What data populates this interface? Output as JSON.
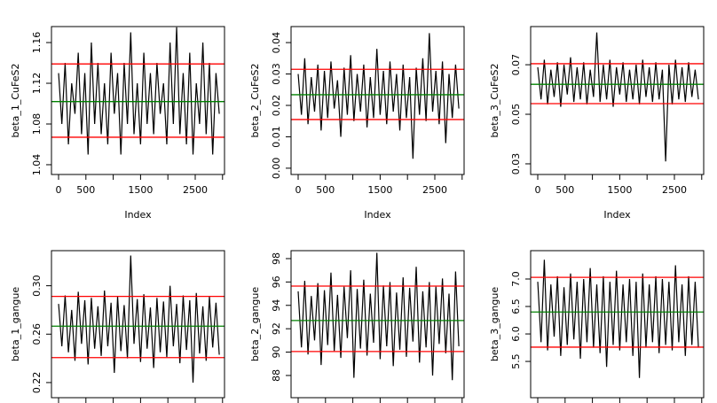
{
  "chart_data": [
    {
      "type": "line",
      "ylabel": "beta_1_CuFeS2",
      "xlabel": "Index",
      "color": "#000000",
      "x": [
        0,
        60,
        120,
        180,
        240,
        300,
        360,
        420,
        480,
        540,
        600,
        660,
        720,
        780,
        840,
        900,
        960,
        1020,
        1080,
        1140,
        1200,
        1260,
        1320,
        1380,
        1440,
        1500,
        1560,
        1620,
        1680,
        1740,
        1800,
        1860,
        1920,
        1980,
        2040,
        2100,
        2160,
        2220,
        2280,
        2340,
        2400,
        2460,
        2520,
        2580,
        2640,
        2700,
        2760,
        2820,
        2880,
        2940
      ],
      "values": [
        1.13,
        1.08,
        1.14,
        1.06,
        1.12,
        1.09,
        1.15,
        1.07,
        1.13,
        1.05,
        1.16,
        1.08,
        1.14,
        1.07,
        1.12,
        1.06,
        1.15,
        1.09,
        1.13,
        1.05,
        1.14,
        1.08,
        1.17,
        1.07,
        1.12,
        1.06,
        1.15,
        1.08,
        1.13,
        1.07,
        1.14,
        1.09,
        1.12,
        1.06,
        1.16,
        1.08,
        1.175,
        1.07,
        1.13,
        1.06,
        1.15,
        1.05,
        1.12,
        1.08,
        1.16,
        1.07,
        1.14,
        1.05,
        1.13,
        1.09
      ],
      "xlim": [
        -130,
        3036
      ],
      "ylim": [
        1.0304,
        1.1757
      ],
      "xticks": [
        0,
        500,
        1500,
        2500
      ],
      "xtick_marks": [
        1000,
        2000,
        3000
      ],
      "yticks": [
        1.04,
        1.08,
        1.12,
        1.16
      ],
      "hlines": [
        {
          "value": 1.139,
          "color": "#ff0000"
        },
        {
          "value": 1.067,
          "color": "#ff0000"
        },
        {
          "value": 1.102,
          "color": "#008000"
        }
      ]
    },
    {
      "type": "line",
      "ylabel": "beta_2_CuFeS2",
      "xlabel": "Index",
      "color": "#000000",
      "x": [
        0,
        60,
        120,
        180,
        240,
        300,
        360,
        420,
        480,
        540,
        600,
        660,
        720,
        780,
        840,
        900,
        960,
        1020,
        1080,
        1140,
        1200,
        1260,
        1320,
        1380,
        1440,
        1500,
        1560,
        1620,
        1680,
        1740,
        1800,
        1860,
        1920,
        1980,
        2040,
        2100,
        2160,
        2220,
        2280,
        2340,
        2400,
        2460,
        2520,
        2580,
        2640,
        2700,
        2760,
        2820,
        2880,
        2940
      ],
      "values": [
        0.03,
        0.017,
        0.035,
        0.014,
        0.029,
        0.018,
        0.033,
        0.012,
        0.031,
        0.016,
        0.034,
        0.019,
        0.028,
        0.01,
        0.032,
        0.017,
        0.036,
        0.015,
        0.03,
        0.018,
        0.033,
        0.013,
        0.029,
        0.016,
        0.038,
        0.017,
        0.031,
        0.014,
        0.034,
        0.018,
        0.03,
        0.012,
        0.033,
        0.016,
        0.029,
        0.003,
        0.032,
        0.017,
        0.035,
        0.015,
        0.043,
        0.018,
        0.031,
        0.014,
        0.034,
        0.008,
        0.03,
        0.016,
        0.033,
        0.019
      ],
      "xlim": [
        -130,
        3036
      ],
      "ylim": [
        -0.002,
        0.0451
      ],
      "xticks": [
        0,
        500,
        1500,
        2500
      ],
      "xtick_marks": [
        1000,
        2000,
        3000
      ],
      "yticks": [
        {
          "value": 0,
          "label": "0.00"
        },
        0.01,
        0.02,
        0.03,
        0.04
      ],
      "hlines": [
        {
          "value": 0.0315,
          "color": "#ff0000"
        },
        {
          "value": 0.0155,
          "color": "#ff0000"
        },
        {
          "value": 0.0234,
          "color": "#008000"
        }
      ]
    },
    {
      "type": "line",
      "ylabel": "beta_3_CuFeS2",
      "xlabel": "Index",
      "color": "#000000",
      "x": [
        0,
        60,
        120,
        180,
        240,
        300,
        360,
        420,
        480,
        540,
        600,
        660,
        720,
        780,
        840,
        900,
        960,
        1020,
        1080,
        1140,
        1200,
        1260,
        1320,
        1380,
        1440,
        1500,
        1560,
        1620,
        1680,
        1740,
        1800,
        1860,
        1920,
        1980,
        2040,
        2100,
        2160,
        2220,
        2280,
        2340,
        2400,
        2460,
        2520,
        2580,
        2640,
        2700,
        2760,
        2820,
        2880,
        2940
      ],
      "values": [
        0.069,
        0.056,
        0.072,
        0.054,
        0.068,
        0.057,
        0.071,
        0.053,
        0.07,
        0.058,
        0.073,
        0.055,
        0.069,
        0.056,
        0.071,
        0.054,
        0.068,
        0.057,
        0.083,
        0.055,
        0.07,
        0.056,
        0.072,
        0.053,
        0.069,
        0.058,
        0.071,
        0.055,
        0.068,
        0.056,
        0.07,
        0.054,
        0.072,
        0.057,
        0.069,
        0.055,
        0.071,
        0.056,
        0.068,
        0.031,
        0.07,
        0.054,
        0.072,
        0.056,
        0.069,
        0.055,
        0.071,
        0.057,
        0.068,
        0.056
      ],
      "xlim": [
        -130,
        3036
      ],
      "ylim": [
        0.0257,
        0.0854
      ],
      "xticks": [
        0,
        500,
        1500,
        2500
      ],
      "xtick_marks": [
        1000,
        2000,
        3000
      ],
      "yticks": [
        0.03,
        0.05,
        0.07
      ],
      "hlines": [
        {
          "value": 0.0704,
          "color": "#ff0000"
        },
        {
          "value": 0.0543,
          "color": "#ff0000"
        },
        {
          "value": 0.0621,
          "color": "#008000"
        }
      ]
    },
    {
      "type": "line",
      "ylabel": "beta_1_gangue",
      "color": "#000000",
      "x": [
        0,
        60,
        120,
        180,
        240,
        300,
        360,
        420,
        480,
        540,
        600,
        660,
        720,
        780,
        840,
        900,
        960,
        1020,
        1080,
        1140,
        1200,
        1260,
        1320,
        1380,
        1440,
        1500,
        1560,
        1620,
        1680,
        1740,
        1800,
        1860,
        1920,
        1980,
        2040,
        2100,
        2160,
        2220,
        2280,
        2340,
        2400,
        2460,
        2520,
        2580,
        2640,
        2700,
        2760,
        2820,
        2880,
        2940
      ],
      "values": [
        0.285,
        0.25,
        0.292,
        0.245,
        0.28,
        0.238,
        0.295,
        0.252,
        0.288,
        0.235,
        0.29,
        0.248,
        0.283,
        0.242,
        0.296,
        0.25,
        0.286,
        0.228,
        0.291,
        0.246,
        0.284,
        0.24,
        0.325,
        0.252,
        0.289,
        0.237,
        0.293,
        0.248,
        0.282,
        0.232,
        0.29,
        0.245,
        0.287,
        0.241,
        0.3,
        0.25,
        0.285,
        0.236,
        0.292,
        0.247,
        0.288,
        0.22,
        0.294,
        0.244,
        0.283,
        0.238,
        0.291,
        0.249,
        0.286,
        0.243
      ],
      "xlim": [
        -130,
        3036
      ],
      "ylim": [
        0.2075,
        0.329
      ],
      "xtick_marks": [
        0,
        500,
        1000,
        1500,
        2000,
        2500,
        3000
      ],
      "yticks": [
        0.22,
        0.26,
        {
          "value": 0.3,
          "label": "0.30"
        }
      ],
      "hlines": [
        {
          "value": 0.2912,
          "color": "#ff0000"
        },
        {
          "value": 0.2406,
          "color": "#ff0000"
        },
        {
          "value": 0.2666,
          "color": "#008000"
        }
      ]
    },
    {
      "type": "line",
      "ylabel": "beta_2_gangue",
      "color": "#000000",
      "x": [
        0,
        60,
        120,
        180,
        240,
        300,
        360,
        420,
        480,
        540,
        600,
        660,
        720,
        780,
        840,
        900,
        960,
        1020,
        1080,
        1140,
        1200,
        1260,
        1320,
        1380,
        1440,
        1500,
        1560,
        1620,
        1680,
        1740,
        1800,
        1860,
        1920,
        1980,
        2040,
        2100,
        2160,
        2220,
        2280,
        2340,
        2400,
        2460,
        2520,
        2580,
        2640,
        2700,
        2760,
        2820,
        2880,
        2940
      ],
      "values": [
        95.2,
        90.4,
        96.1,
        89.8,
        94.8,
        91.0,
        95.9,
        88.9,
        95.3,
        90.6,
        96.8,
        90.1,
        94.9,
        89.5,
        95.6,
        91.2,
        97.0,
        87.8,
        95.4,
        90.3,
        96.2,
        89.7,
        95.0,
        90.8,
        98.5,
        89.4,
        95.7,
        90.5,
        96.0,
        88.8,
        95.1,
        90.2,
        96.4,
        89.6,
        95.5,
        90.9,
        97.3,
        89.1,
        95.2,
        90.4,
        96.0,
        88.0,
        95.6,
        90.7,
        96.3,
        89.9,
        95.0,
        87.6,
        96.9,
        90.5
      ],
      "xlim": [
        -130,
        3036
      ],
      "ylim": [
        86.1,
        98.68
      ],
      "xtick_marks": [
        0,
        500,
        1000,
        1500,
        2000,
        2500,
        3000
      ],
      "yticks": [
        88,
        90,
        92,
        94,
        96,
        98
      ],
      "hlines": [
        {
          "value": 95.65,
          "color": "#ff0000"
        },
        {
          "value": 90.05,
          "color": "#ff0000"
        },
        {
          "value": 92.7,
          "color": "#008000"
        }
      ]
    },
    {
      "type": "line",
      "ylabel": "beta_3_gangue",
      "color": "#000000",
      "x": [
        0,
        60,
        120,
        180,
        240,
        300,
        360,
        420,
        480,
        540,
        600,
        660,
        720,
        780,
        840,
        900,
        960,
        1020,
        1080,
        1140,
        1200,
        1260,
        1320,
        1380,
        1440,
        1500,
        1560,
        1620,
        1680,
        1740,
        1800,
        1860,
        1920,
        1980,
        2040,
        2100,
        2160,
        2220,
        2280,
        2340,
        2400,
        2460,
        2520,
        2580,
        2640,
        2700,
        2760,
        2820,
        2880,
        2940
      ],
      "values": [
        6.95,
        5.85,
        7.35,
        5.7,
        6.9,
        5.95,
        7.05,
        5.6,
        6.85,
        5.8,
        7.1,
        5.9,
        6.95,
        5.55,
        7.0,
        5.85,
        7.2,
        5.75,
        6.9,
        5.65,
        7.05,
        5.4,
        6.95,
        5.8,
        7.15,
        5.7,
        6.9,
        5.85,
        7.0,
        5.6,
        6.95,
        5.2,
        7.1,
        5.75,
        6.9,
        5.85,
        7.05,
        5.65,
        7.0,
        5.8,
        6.95,
        5.7,
        7.25,
        5.85,
        6.9,
        5.6,
        7.05,
        5.8,
        6.95,
        5.75
      ],
      "xlim": [
        -130,
        3036
      ],
      "ylim": [
        4.84,
        7.516
      ],
      "xtick_marks": [
        0,
        500,
        1000,
        1500,
        2000,
        2500,
        3000
      ],
      "yticks": [
        5.5,
        {
          "value": 6,
          "label": "6.0"
        },
        6.5,
        {
          "value": 7,
          "label": "7.0"
        }
      ],
      "hlines": [
        {
          "value": 7.03,
          "color": "#ff0000"
        },
        {
          "value": 5.76,
          "color": "#ff0000"
        },
        {
          "value": 6.4,
          "color": "#008000"
        }
      ]
    }
  ]
}
